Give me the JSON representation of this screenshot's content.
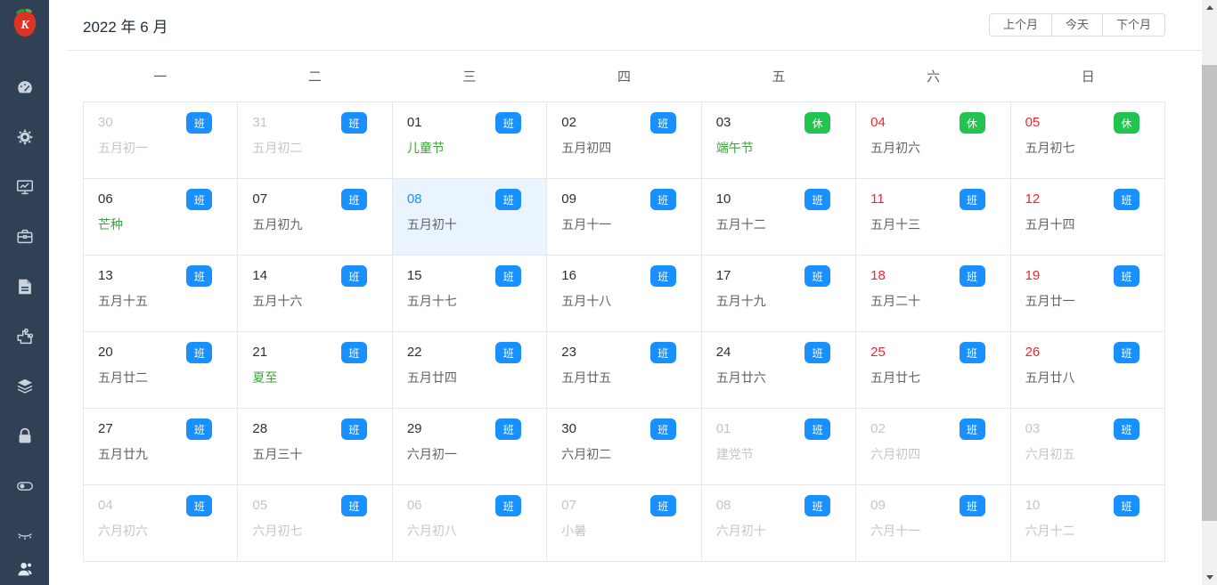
{
  "app": {
    "logo_letter": "K",
    "sidebar_icons": [
      "dashboard-icon",
      "gear-icon",
      "monitor-chart-icon",
      "briefcase-icon",
      "document-icon",
      "puzzle-icon",
      "layers-icon",
      "lock-icon",
      "toggle-icon",
      "eye-closed-icon",
      "user-icon"
    ]
  },
  "header": {
    "title": "2022 年 6 月",
    "buttons": [
      {
        "label": "上个月"
      },
      {
        "label": "今天"
      },
      {
        "label": "下个月"
      }
    ]
  },
  "calendar": {
    "weekdays": [
      "一",
      "二",
      "三",
      "四",
      "五",
      "六",
      "日"
    ],
    "badge_legend": {
      "work": "班",
      "rest": "休"
    },
    "colors": {
      "accent_blue": "#1890ff",
      "rest_green": "#23c350",
      "holiday_red": "#f5232d",
      "festival_green": "#3aa33a",
      "today_bg": "#eaf4fe",
      "sidebar_bg": "#304156"
    },
    "weeks": [
      [
        {
          "day": "30",
          "sub": "五月初一",
          "badge": "班",
          "day_class": "dim",
          "sub_class": "dim"
        },
        {
          "day": "31",
          "sub": "五月初二",
          "badge": "班",
          "day_class": "dim",
          "sub_class": "dim"
        },
        {
          "day": "01",
          "sub": "儿童节",
          "badge": "班",
          "day_class": "",
          "sub_class": "green"
        },
        {
          "day": "02",
          "sub": "五月初四",
          "badge": "班",
          "day_class": "",
          "sub_class": ""
        },
        {
          "day": "03",
          "sub": "端午节",
          "badge": "休",
          "day_class": "",
          "sub_class": "green"
        },
        {
          "day": "04",
          "sub": "五月初六",
          "badge": "休",
          "day_class": "red",
          "sub_class": ""
        },
        {
          "day": "05",
          "sub": "五月初七",
          "badge": "休",
          "day_class": "red",
          "sub_class": ""
        }
      ],
      [
        {
          "day": "06",
          "sub": "芒种",
          "badge": "班",
          "day_class": "",
          "sub_class": "green"
        },
        {
          "day": "07",
          "sub": "五月初九",
          "badge": "班",
          "day_class": "",
          "sub_class": ""
        },
        {
          "day": "08",
          "sub": "五月初十",
          "badge": "班",
          "day_class": "",
          "sub_class": "",
          "today": true
        },
        {
          "day": "09",
          "sub": "五月十一",
          "badge": "班",
          "day_class": "",
          "sub_class": ""
        },
        {
          "day": "10",
          "sub": "五月十二",
          "badge": "班",
          "day_class": "",
          "sub_class": ""
        },
        {
          "day": "11",
          "sub": "五月十三",
          "badge": "班",
          "day_class": "red",
          "sub_class": ""
        },
        {
          "day": "12",
          "sub": "五月十四",
          "badge": "班",
          "day_class": "red",
          "sub_class": ""
        }
      ],
      [
        {
          "day": "13",
          "sub": "五月十五",
          "badge": "班",
          "day_class": "",
          "sub_class": ""
        },
        {
          "day": "14",
          "sub": "五月十六",
          "badge": "班",
          "day_class": "",
          "sub_class": ""
        },
        {
          "day": "15",
          "sub": "五月十七",
          "badge": "班",
          "day_class": "",
          "sub_class": ""
        },
        {
          "day": "16",
          "sub": "五月十八",
          "badge": "班",
          "day_class": "",
          "sub_class": ""
        },
        {
          "day": "17",
          "sub": "五月十九",
          "badge": "班",
          "day_class": "",
          "sub_class": ""
        },
        {
          "day": "18",
          "sub": "五月二十",
          "badge": "班",
          "day_class": "red",
          "sub_class": ""
        },
        {
          "day": "19",
          "sub": "五月廿一",
          "badge": "班",
          "day_class": "red",
          "sub_class": ""
        }
      ],
      [
        {
          "day": "20",
          "sub": "五月廿二",
          "badge": "班",
          "day_class": "",
          "sub_class": ""
        },
        {
          "day": "21",
          "sub": "夏至",
          "badge": "班",
          "day_class": "",
          "sub_class": "green"
        },
        {
          "day": "22",
          "sub": "五月廿四",
          "badge": "班",
          "day_class": "",
          "sub_class": ""
        },
        {
          "day": "23",
          "sub": "五月廿五",
          "badge": "班",
          "day_class": "",
          "sub_class": ""
        },
        {
          "day": "24",
          "sub": "五月廿六",
          "badge": "班",
          "day_class": "",
          "sub_class": ""
        },
        {
          "day": "25",
          "sub": "五月廿七",
          "badge": "班",
          "day_class": "red",
          "sub_class": ""
        },
        {
          "day": "26",
          "sub": "五月廿八",
          "badge": "班",
          "day_class": "red",
          "sub_class": ""
        }
      ],
      [
        {
          "day": "27",
          "sub": "五月廿九",
          "badge": "班",
          "day_class": "",
          "sub_class": ""
        },
        {
          "day": "28",
          "sub": "五月三十",
          "badge": "班",
          "day_class": "",
          "sub_class": ""
        },
        {
          "day": "29",
          "sub": "六月初一",
          "badge": "班",
          "day_class": "",
          "sub_class": ""
        },
        {
          "day": "30",
          "sub": "六月初二",
          "badge": "班",
          "day_class": "",
          "sub_class": ""
        },
        {
          "day": "01",
          "sub": "建党节",
          "badge": "班",
          "day_class": "dim",
          "sub_class": "dim"
        },
        {
          "day": "02",
          "sub": "六月初四",
          "badge": "班",
          "day_class": "dim",
          "sub_class": "dim"
        },
        {
          "day": "03",
          "sub": "六月初五",
          "badge": "班",
          "day_class": "dim",
          "sub_class": "dim"
        }
      ],
      [
        {
          "day": "04",
          "sub": "六月初六",
          "badge": "班",
          "day_class": "dim",
          "sub_class": "dim"
        },
        {
          "day": "05",
          "sub": "六月初七",
          "badge": "班",
          "day_class": "dim",
          "sub_class": "dim"
        },
        {
          "day": "06",
          "sub": "六月初八",
          "badge": "班",
          "day_class": "dim",
          "sub_class": "dim"
        },
        {
          "day": "07",
          "sub": "小暑",
          "badge": "班",
          "day_class": "dim",
          "sub_class": "dim"
        },
        {
          "day": "08",
          "sub": "六月初十",
          "badge": "班",
          "day_class": "dim",
          "sub_class": "dim"
        },
        {
          "day": "09",
          "sub": "六月十一",
          "badge": "班",
          "day_class": "dim",
          "sub_class": "dim"
        },
        {
          "day": "10",
          "sub": "六月十二",
          "badge": "班",
          "day_class": "dim",
          "sub_class": "dim"
        }
      ]
    ]
  }
}
